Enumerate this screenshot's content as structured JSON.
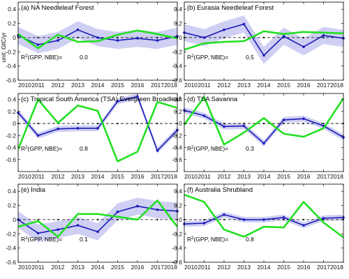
{
  "figure": {
    "ylabel": "unit: GtC/yr",
    "colors": {
      "gpp": "#1a1ab8",
      "nbe": "#22e022",
      "band": "#c7c7f2",
      "zero": "#000000",
      "frame": "#000000"
    }
  },
  "chart_data": [
    {
      "type": "line",
      "panel": "a",
      "title": "(a) NA Needleleaf Forest",
      "r2_text": "R2(GPP, NBE)=",
      "r2_value": "0.0",
      "x": [
        2010,
        2011,
        2012,
        2013,
        2014,
        2015,
        2016,
        2017,
        2018
      ],
      "xticks": [
        "2010",
        "2011",
        "2012",
        "2013",
        "2014",
        "2015",
        "2016",
        "2017",
        "2018"
      ],
      "ylim": [
        -0.6,
        0.5
      ],
      "yticks": [
        "-0.6",
        "-0.4",
        "-0.2",
        "0",
        "0.2",
        "0.4"
      ],
      "series": [
        {
          "key": "gpp",
          "values": [
            0.03,
            -0.1,
            -0.04,
            0.11,
            0.0,
            -0.04,
            -0.01,
            -0.04,
            0.02
          ],
          "band": 0.12
        },
        {
          "key": "nbe",
          "values": [
            0.05,
            -0.15,
            0.04,
            -0.06,
            -0.05,
            0.04,
            0.1,
            0.05,
            -0.01
          ]
        }
      ]
    },
    {
      "type": "line",
      "panel": "b",
      "title": "(b) Eurasia Needleleaf Forest",
      "r2_text": "R2(GPP, NBE)=",
      "r2_value": "0.5",
      "x": [
        2010,
        2011,
        2012,
        2013,
        2014,
        2015,
        2016,
        2017,
        2018
      ],
      "xticks": [
        "2010",
        "2011",
        "2012",
        "2013",
        "2014",
        "2015",
        "2016",
        "2017",
        "2018"
      ],
      "ylim": [
        -0.6,
        0.5
      ],
      "yticks": [
        "-0.6",
        "-0.4",
        "-0.2",
        "0",
        "0.2",
        "0.4"
      ],
      "series": [
        {
          "key": "gpp",
          "values": [
            0.07,
            0.0,
            0.11,
            0.19,
            -0.25,
            0.02,
            -0.13,
            0.03,
            -0.01
          ],
          "band": 0.12
        },
        {
          "key": "nbe",
          "values": [
            -0.17,
            -0.08,
            -0.06,
            -0.05,
            0.09,
            0.05,
            0.08,
            0.07,
            0.06
          ]
        }
      ]
    },
    {
      "type": "line",
      "panel": "c",
      "title": "(c) Tropical South America (TSA) Evergreen Broadleaf",
      "r2_text": "R2(GPP, NBE)=",
      "r2_value": "0.8",
      "x": [
        2010,
        2011,
        2012,
        2013,
        2014,
        2015,
        2016,
        2017,
        2018
      ],
      "xticks": [
        "2010",
        "2011",
        "2012",
        "2013",
        "2014",
        "2015",
        "2016",
        "2017",
        "2018"
      ],
      "ylim": [
        -0.8,
        0.5
      ],
      "yticks": [
        "-0.6",
        "-0.4",
        "-0.2",
        "0",
        "0.2",
        "0.4"
      ],
      "series": [
        {
          "key": "gpp",
          "values": [
            0.18,
            -0.2,
            -0.09,
            -0.08,
            -0.08,
            0.37,
            0.45,
            -0.45,
            -0.11
          ],
          "band": 0.05
        },
        {
          "key": "nbe",
          "values": [
            -0.43,
            0.4,
            0.01,
            0.3,
            0.21,
            -0.63,
            -0.47,
            0.36,
            0.26
          ]
        }
      ]
    },
    {
      "type": "line",
      "panel": "d",
      "title": "(d) TSA Savanna",
      "r2_text": "R2(GPP, NBE)=",
      "r2_value": "0.3",
      "x": [
        2010,
        2011,
        2012,
        2013,
        2014,
        2015,
        2016,
        2017,
        2018
      ],
      "xticks": [
        "2010",
        "2011",
        "2012",
        "2013",
        "2014",
        "2015",
        "2016",
        "2017",
        "2018"
      ],
      "ylim": [
        -0.8,
        0.5
      ],
      "yticks": [
        "-0.6",
        "-0.4",
        "-0.2",
        "0",
        "0.2",
        "0.4"
      ],
      "series": [
        {
          "key": "gpp",
          "values": [
            0.22,
            0.13,
            -0.05,
            -0.04,
            -0.33,
            0.06,
            0.08,
            -0.04,
            -0.23
          ],
          "band": 0.05
        },
        {
          "key": "nbe",
          "values": [
            -0.02,
            0.44,
            -0.35,
            -0.15,
            0.09,
            -0.17,
            -0.22,
            -0.08,
            0.42
          ]
        }
      ]
    },
    {
      "type": "line",
      "panel": "e",
      "title": "(e) India",
      "r2_text": "R2(GPP, NBE)=",
      "r2_value": "0.1",
      "x": [
        2010,
        2011,
        2012,
        2013,
        2014,
        2015,
        2016,
        2017,
        2018
      ],
      "xticks": [
        "2010",
        "2011",
        "2012",
        "2013",
        "2014",
        "2015",
        "2016",
        "2017",
        "2018"
      ],
      "ylim": [
        -0.6,
        0.5
      ],
      "yticks": [
        "-0.6",
        "-0.4",
        "-0.2",
        "0",
        "0.2",
        "0.4"
      ],
      "series": [
        {
          "key": "gpp",
          "values": [
            0.0,
            -0.19,
            -0.14,
            -0.08,
            -0.17,
            0.11,
            0.19,
            0.14,
            0.12
          ],
          "band": 0.12
        },
        {
          "key": "nbe",
          "values": [
            -0.1,
            -0.02,
            -0.24,
            0.08,
            0.08,
            0.04,
            0.0,
            0.27,
            -0.1
          ]
        }
      ]
    },
    {
      "type": "line",
      "panel": "f",
      "title": "(f) Australia Shrubland",
      "r2_text": "R2(GPP, NBE)=",
      "r2_value": "0.8",
      "x": [
        2010,
        2011,
        2012,
        2013,
        2014,
        2015,
        2016,
        2017,
        2018
      ],
      "xticks": [
        "2010",
        "2011",
        "2012",
        "2013",
        "2014",
        "2015",
        "2016",
        "2017",
        "2018"
      ],
      "ylim": [
        -0.6,
        0.5
      ],
      "yticks": [
        "-0.6",
        "-0.4",
        "-0.2",
        "0",
        "0.2",
        "0.4"
      ],
      "series": [
        {
          "key": "gpp",
          "values": [
            -0.06,
            -0.05,
            0.07,
            0.0,
            0.0,
            0.03,
            -0.08,
            0.02,
            0.03
          ],
          "band": 0.04
        },
        {
          "key": "nbe",
          "values": [
            0.35,
            0.25,
            -0.14,
            -0.24,
            -0.1,
            -0.11,
            0.25,
            -0.04,
            -0.25
          ]
        }
      ]
    }
  ]
}
